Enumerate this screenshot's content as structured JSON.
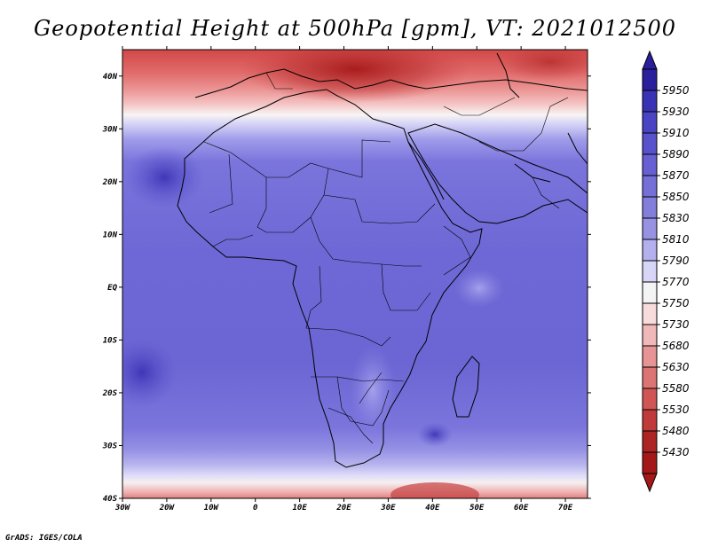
{
  "title": "Geopotential Height at 500hPa [gpm], VT: 2021012500",
  "footer": "GrADS: IGES/COLA",
  "map": {
    "variable": "Geopotential Height at 500hPa",
    "units": "gpm",
    "valid_time": "2021012500",
    "lon_range": [
      -30,
      75
    ],
    "lat_range": [
      -40,
      45
    ],
    "lon_ticks": [
      "30W",
      "20W",
      "10W",
      "0",
      "10E",
      "20E",
      "30E",
      "40E",
      "50E",
      "60E",
      "70E"
    ],
    "lat_ticks": [
      "40N",
      "30N",
      "20N",
      "10N",
      "EQ",
      "10S",
      "20S",
      "30S",
      "40S"
    ]
  },
  "colorbar": {
    "levels": [
      "5950",
      "5930",
      "5910",
      "5890",
      "5870",
      "5850",
      "5830",
      "5810",
      "5790",
      "5770",
      "5750",
      "5730",
      "5680",
      "5630",
      "5580",
      "5530",
      "5480",
      "5430"
    ],
    "colors": [
      "#2a1e9c",
      "#3a32b4",
      "#4a44c4",
      "#5852cc",
      "#6660d2",
      "#7470d8",
      "#827edc",
      "#9892e2",
      "#b4b0ee",
      "#d8d6f8",
      "#f4f4f4",
      "#f8dcdc",
      "#f0b8b8",
      "#e69494",
      "#dc7474",
      "#d05656",
      "#c03a3a",
      "#ac2424",
      "#a51818"
    ]
  }
}
